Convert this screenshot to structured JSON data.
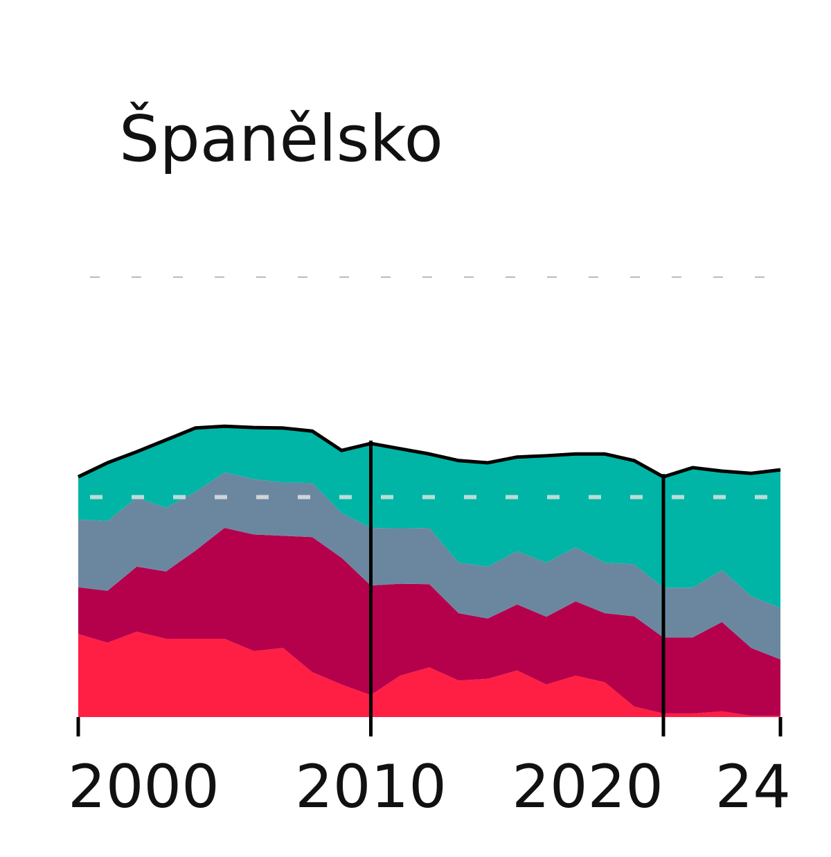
{
  "chart_data": {
    "type": "stacked-area",
    "title": "Španělsko",
    "x": [
      2000,
      2001,
      2002,
      2003,
      2004,
      2005,
      2006,
      2007,
      2008,
      2009,
      2010,
      2011,
      2012,
      2013,
      2014,
      2015,
      2016,
      2017,
      2018,
      2019,
      2020,
      2021,
      2022,
      2023,
      2024
    ],
    "series": [
      {
        "color": "#ff1f44",
        "values": [
          18.9,
          16.9,
          19.4,
          17.8,
          17.8,
          17.8,
          15.0,
          15.7,
          10.2,
          7.4,
          5.0,
          9.4,
          11.3,
          8.3,
          8.7,
          10.6,
          7.4,
          9.4,
          7.9,
          2.4,
          0.8,
          0.8,
          1.3,
          0.3,
          0.3
        ]
      },
      {
        "color": "#b5004b",
        "values": [
          10.6,
          11.8,
          14.8,
          15.3,
          20.0,
          25.2,
          26.5,
          25.5,
          30.7,
          28.8,
          24.9,
          20.9,
          18.9,
          15.3,
          13.7,
          15.0,
          15.4,
          16.9,
          15.7,
          20.5,
          17.3,
          17.3,
          20.3,
          15.4,
          12.8
        ]
      },
      {
        "color": "#6b87a0",
        "values": [
          15.4,
          15.9,
          15.7,
          14.5,
          13.4,
          12.6,
          12.6,
          12.1,
          12.3,
          10.2,
          13.1,
          12.6,
          12.8,
          11.5,
          11.8,
          12.1,
          12.3,
          12.3,
          11.5,
          11.8,
          11.3,
          11.3,
          11.8,
          11.8,
          11.7
        ]
      },
      {
        "color": "#00b5a5",
        "values": [
          9.8,
          13.2,
          10.4,
          15.4,
          14.5,
          10.6,
          11.8,
          12.3,
          11.8,
          14.2,
          19.2,
          18.0,
          16.9,
          23.1,
          23.6,
          21.4,
          24.3,
          21.3,
          24.7,
          23.6,
          25.2,
          27.2,
          22.5,
          27.9,
          31.5
        ]
      }
    ],
    "total": {
      "color": "#000000",
      "values": [
        54.6,
        57.8,
        60.3,
        63.0,
        65.7,
        66.1,
        65.8,
        65.7,
        65.0,
        60.6,
        62.2,
        61.0,
        59.8,
        58.3,
        57.8,
        59.1,
        59.4,
        59.8,
        59.8,
        58.3,
        54.6,
        56.7,
        55.9,
        55.4,
        56.2
      ]
    },
    "xlim": [
      2000,
      2024
    ],
    "xticks": [
      2000,
      2010,
      2020,
      {
        "value": 2024,
        "label": "24"
      }
    ],
    "vlines": [
      2010,
      2020
    ],
    "ylim": [
      0,
      100
    ],
    "yticks": [
      50,
      100
    ],
    "grid": true
  }
}
